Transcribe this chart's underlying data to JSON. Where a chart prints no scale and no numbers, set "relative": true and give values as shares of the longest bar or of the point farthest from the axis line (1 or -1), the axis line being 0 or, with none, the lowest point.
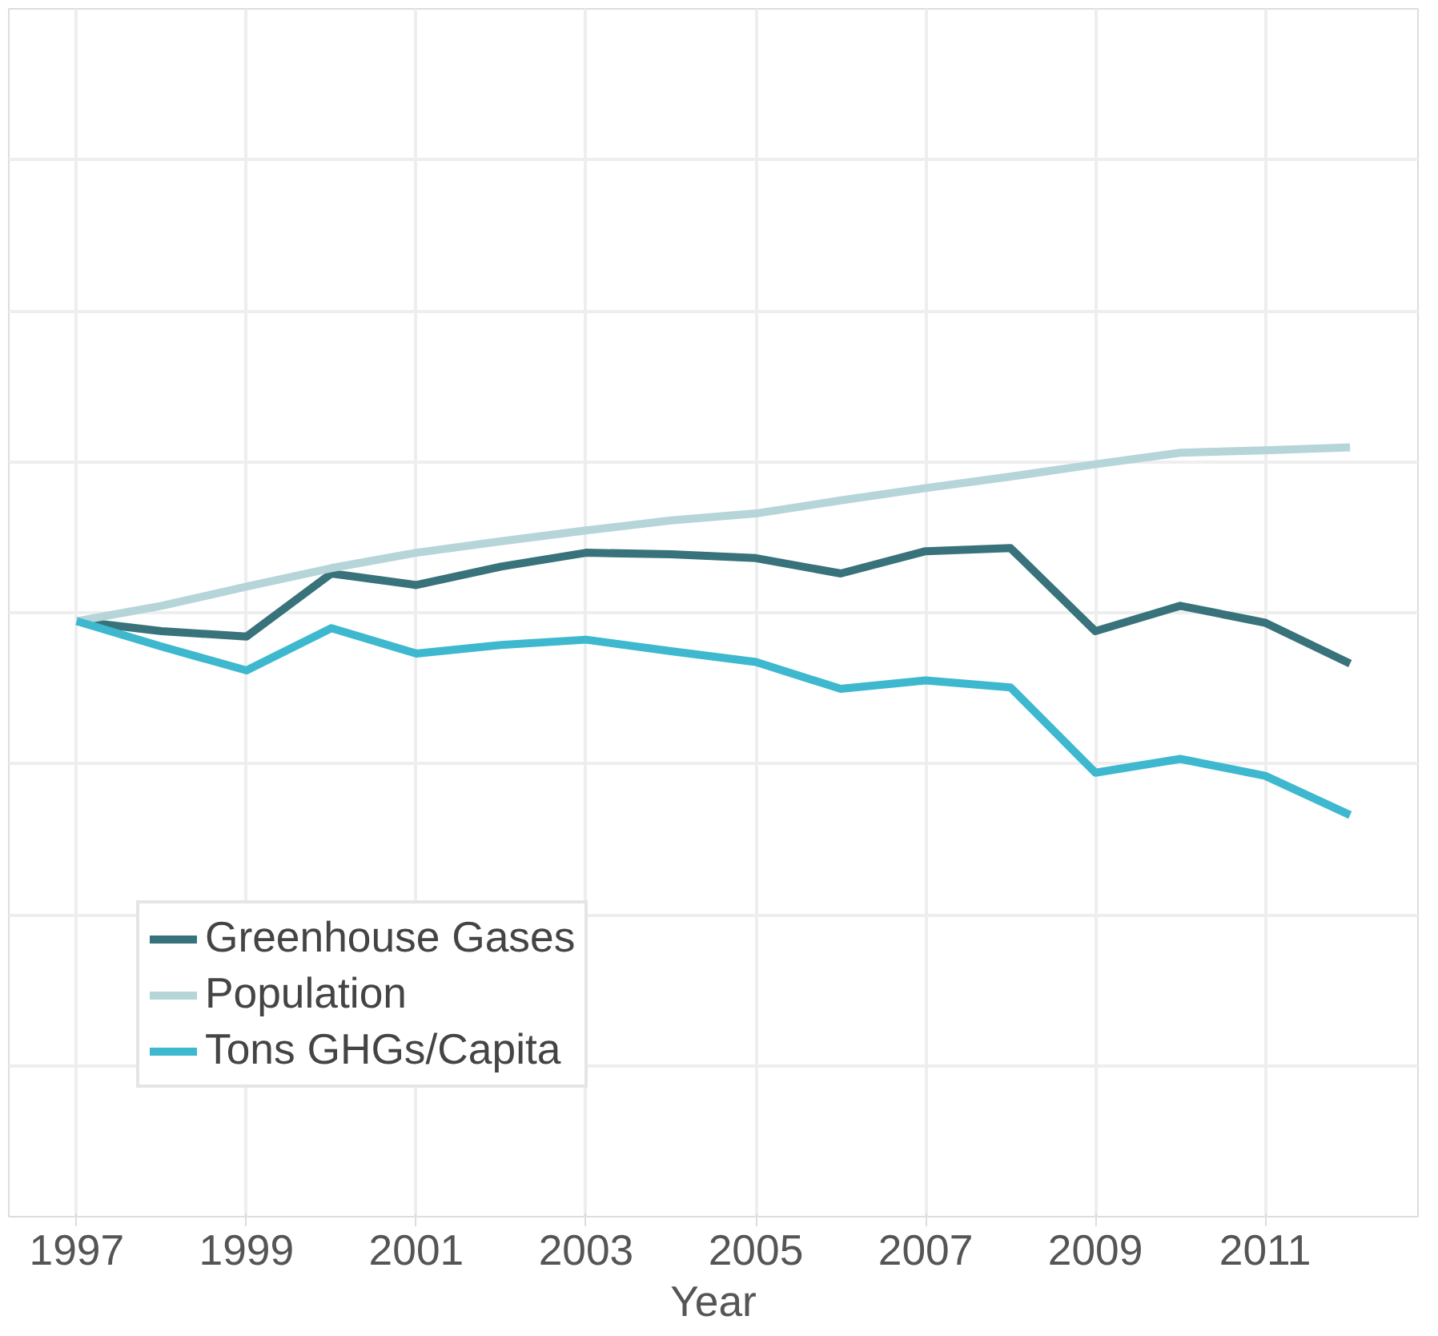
{
  "chart_data": {
    "type": "line",
    "relative": true,
    "xlabel": "Year",
    "x": [
      1997,
      1998,
      1999,
      2000,
      2001,
      2002,
      2003,
      2004,
      2005,
      2006,
      2007,
      2008,
      2009,
      2010,
      2011,
      2012
    ],
    "xlim": [
      1996.2,
      2012.8
    ],
    "xticks": [
      1997,
      1999,
      2001,
      2003,
      2005,
      2007,
      2009,
      2011
    ],
    "series": [
      {
        "name": "Greenhouse Gases",
        "color": "#38727a",
        "values": [
          0.774,
          0.761,
          0.754,
          0.836,
          0.821,
          0.845,
          0.863,
          0.861,
          0.856,
          0.836,
          0.865,
          0.869,
          0.761,
          0.794,
          0.772,
          0.719
        ]
      },
      {
        "name": "Population",
        "color": "#b5d5d9",
        "values": [
          0.774,
          0.794,
          0.819,
          0.843,
          0.863,
          0.878,
          0.892,
          0.905,
          0.914,
          0.931,
          0.947,
          0.962,
          0.978,
          0.993,
          0.996,
          1.0
        ]
      },
      {
        "name": "Tons GHGs/Capita",
        "color": "#3db8cf",
        "values": [
          0.774,
          0.741,
          0.71,
          0.765,
          0.732,
          0.743,
          0.75,
          0.735,
          0.721,
          0.686,
          0.697,
          0.688,
          0.577,
          0.595,
          0.573,
          0.522
        ]
      }
    ],
    "grid": true,
    "legend": "bottom left",
    "line_style": "solid",
    "marker": "none",
    "tick_labels": "x"
  }
}
